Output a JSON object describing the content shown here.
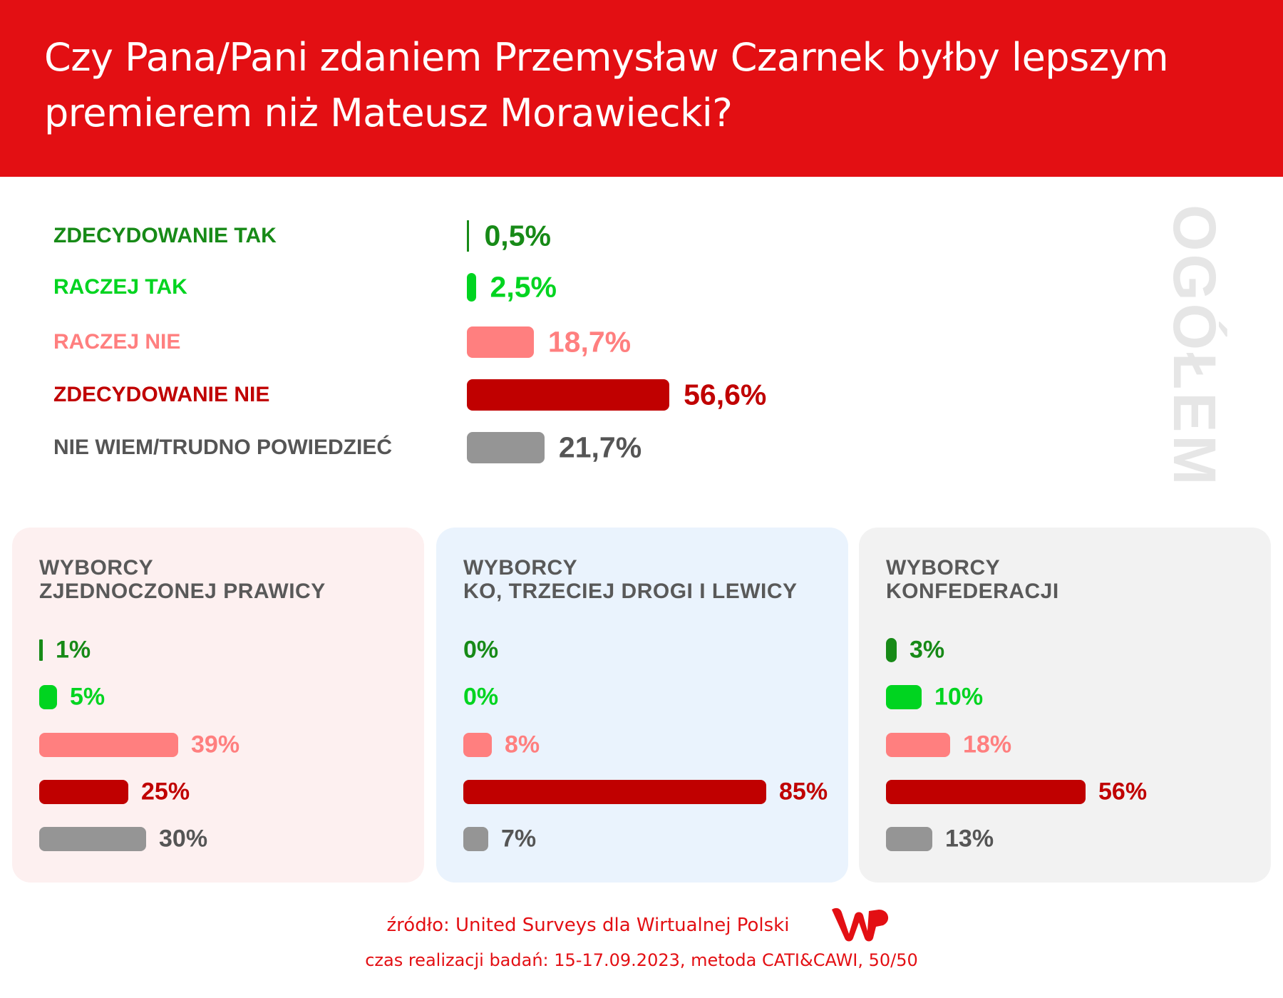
{
  "header": {
    "title": "Czy Pana/Pani zdaniem Przemysław Czarnek byłby lepszym premierem niż Mateusz Morawiecki?"
  },
  "colors": {
    "zdecydowanie_tak": "#178a17",
    "raczej_tak": "#00d420",
    "raczej_nie": "#ff7f7f",
    "zdecydowanie_nie": "#c00000",
    "nie_wiem": "#959595",
    "label_nie_wiem": "#555555",
    "header": "#e30f13"
  },
  "chart_data": {
    "type": "bar",
    "title": "Czy Pana/Pani zdaniem Przemysław Czarnek byłby lepszym premierem niż Mateusz Morawiecki?",
    "categories": [
      "ZDECYDOWANIE TAK",
      "RACZEJ TAK",
      "RACZEJ NIE",
      "ZDECYDOWANIE NIE",
      "NIE WIEM/TRUDNO POWIEDZIEĆ"
    ],
    "overall": {
      "name": "OGÓŁEM",
      "values": [
        0.5,
        2.5,
        18.7,
        56.6,
        21.7
      ],
      "labels": [
        "0,5%",
        "2,5%",
        "18,7%",
        "56,6%",
        "21,7%"
      ]
    },
    "series": [
      {
        "name": "WYBORCY ZJEDNOCZONEJ PRAWICY",
        "title_lines": [
          "WYBORCY",
          "ZJEDNOCZONEJ PRAWICY"
        ],
        "values": [
          1,
          5,
          39,
          25,
          30
        ],
        "labels": [
          "1%",
          "5%",
          "39%",
          "25%",
          "30%"
        ]
      },
      {
        "name": "WYBORCY KO, TRZECIEJ DROGI I LEWICY",
        "title_lines": [
          "WYBORCY",
          "KO, TRZECIEJ DROGI I LEWICY"
        ],
        "values": [
          0,
          0,
          8,
          85,
          7
        ],
        "labels": [
          "0%",
          "0%",
          "8%",
          "85%",
          "7%"
        ]
      },
      {
        "name": "WYBORCY KONFEDERACJI",
        "title_lines": [
          "WYBORCY",
          "KONFEDERACJI"
        ],
        "values": [
          3,
          10,
          18,
          56,
          13
        ],
        "labels": [
          "3%",
          "10%",
          "18%",
          "56%",
          "13%"
        ]
      }
    ],
    "xlim": [
      0,
      100
    ],
    "unit": "%"
  },
  "footer": {
    "source": "źródło: United Surveys dla Wirtualnej Polski",
    "method": "czas realizacji badań: 15-17.09.2023, metoda CATI&CAWI, 50/50",
    "logo_text": "WP"
  }
}
